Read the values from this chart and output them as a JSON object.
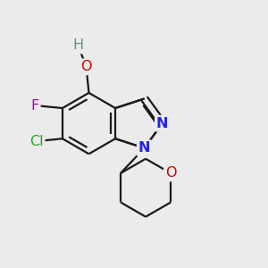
{
  "background_color": "#ebebeb",
  "bond_color": "#1a1a1a",
  "figsize": [
    3.0,
    3.0
  ],
  "dpi": 100,
  "label_colors": {
    "H": "#5f8e8e",
    "O": "#cc0000",
    "F": "#bb00bb",
    "Cl": "#22aa22",
    "N": "#2222ee",
    "O_thp": "#cc0000"
  },
  "bond_lw": 1.6,
  "double_sep": 0.013,
  "font_size": 11.5
}
